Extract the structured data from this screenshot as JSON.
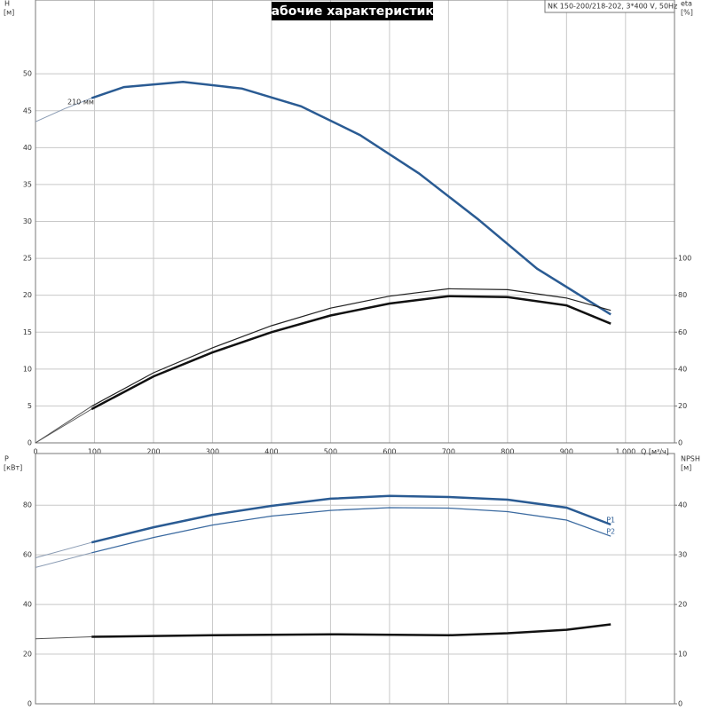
{
  "chart_data": [
    {
      "type": "line",
      "title": "Рабочие характеристики",
      "subtitle": "NK 150-200/218-202, 3*400 V, 50Hz",
      "ylabel": "H",
      "yunit": "[м]",
      "y2label": "eta",
      "y2unit": "[%]",
      "xlabel": "Q [м³/ч]",
      "annotation": "210 мм",
      "xlim": [
        0,
        1083
      ],
      "xticks": [
        0,
        100,
        200,
        300,
        400,
        500,
        600,
        700,
        800,
        900,
        {
          "value": 1000,
          "label": "1 000"
        }
      ],
      "ylim": [
        0,
        60
      ],
      "yticks": [
        0,
        5,
        10,
        15,
        20,
        25,
        30,
        35,
        40,
        45,
        50
      ],
      "y2lim": [
        0,
        240
      ],
      "y2ticks": [
        0,
        20,
        40,
        60,
        80,
        100
      ],
      "grid": true,
      "series": [
        {
          "color": "#8a9bb3",
          "width": 1,
          "x": [
            0,
            50,
            95
          ],
          "values": [
            43.5,
            45.3,
            46.7
          ]
        },
        {
          "color": "#2a5b93",
          "width": 2.5,
          "x": [
            95,
            150,
            250,
            350,
            450,
            550,
            650,
            750,
            850,
            975
          ],
          "values": [
            46.7,
            48.2,
            48.9,
            48.0,
            45.6,
            41.7,
            36.5,
            30.3,
            23.6,
            17.4
          ]
        },
        {
          "color": "#555555",
          "width": 1,
          "axis": "y2",
          "x": [
            0,
            95
          ],
          "values": [
            0,
            19.8
          ]
        },
        {
          "color": "#222222",
          "width": 1.2,
          "axis": "y2",
          "x": [
            95,
            200,
            300,
            400,
            500,
            600,
            700,
            800,
            900,
            975
          ],
          "values": [
            19.8,
            38,
            51.5,
            63.5,
            73,
            79.5,
            83.5,
            83,
            78.5,
            71.8
          ]
        },
        {
          "color": "#555555",
          "width": 1,
          "axis": "y2",
          "x": [
            0,
            95
          ],
          "values": [
            0,
            18.3
          ]
        },
        {
          "color": "#111111",
          "width": 2.5,
          "axis": "y2",
          "x": [
            95,
            200,
            300,
            400,
            500,
            600,
            700,
            800,
            900,
            975
          ],
          "values": [
            18.3,
            36,
            49,
            60,
            69,
            75.5,
            79.5,
            79,
            74.5,
            64.6
          ]
        }
      ]
    },
    {
      "type": "line",
      "ylabel": "P",
      "yunit": "[кВт]",
      "y2label": "NPSH",
      "y2unit": "[м]",
      "xlim": [
        0,
        1083
      ],
      "ylim": [
        0,
        100.8
      ],
      "yticks": [
        0,
        20,
        40,
        60,
        80
      ],
      "y2lim": [
        0,
        50.4
      ],
      "y2ticks": [
        0,
        10,
        20,
        30,
        40
      ],
      "grid": true,
      "series": [
        {
          "color": "#8a9bb3",
          "width": 1,
          "x": [
            0,
            95
          ],
          "values": [
            58.8,
            65
          ]
        },
        {
          "name": "P1",
          "color": "#2a5b93",
          "width": 2.5,
          "x": [
            95,
            200,
            300,
            400,
            500,
            600,
            700,
            800,
            900,
            975
          ],
          "values": [
            65,
            71.1,
            76.1,
            79.7,
            82.6,
            83.7,
            83.3,
            82.2,
            79,
            72.2
          ]
        },
        {
          "color": "#8a9bb3",
          "width": 1,
          "x": [
            0,
            95
          ],
          "values": [
            54.9,
            60.8
          ]
        },
        {
          "name": "P2",
          "color": "#3b6aa0",
          "width": 1.3,
          "x": [
            95,
            200,
            300,
            400,
            500,
            600,
            700,
            800,
            900,
            975
          ],
          "values": [
            60.8,
            67,
            72,
            75.6,
            77.9,
            79,
            78.8,
            77.4,
            74,
            67.5
          ]
        },
        {
          "color": "#555555",
          "width": 1,
          "axis": "y2",
          "x": [
            0,
            95
          ],
          "values": [
            13.1,
            13.5
          ]
        },
        {
          "color": "#111111",
          "width": 2.5,
          "axis": "y2",
          "x": [
            95,
            300,
            500,
            700,
            800,
            900,
            975
          ],
          "values": [
            13.5,
            13.8,
            14,
            13.8,
            14.2,
            14.9,
            16
          ]
        }
      ]
    }
  ]
}
